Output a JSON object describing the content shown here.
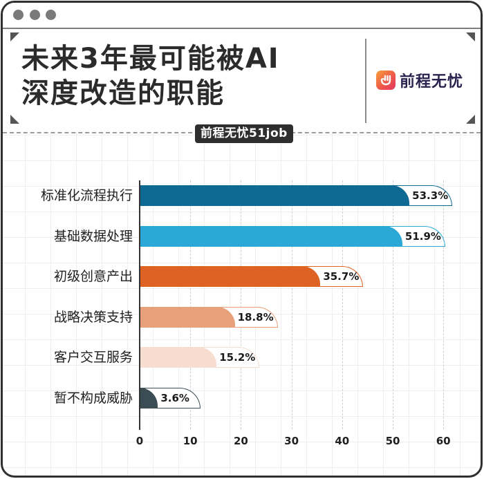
{
  "window": {
    "controls": [
      "dot-1",
      "dot-2",
      "dot-3"
    ]
  },
  "header": {
    "title_line1": "未来3年最可能被AI",
    "title_line2": "深度改造的职能",
    "logo_text": "前程无忧",
    "logo_icon": "hand-icon",
    "source_badge": "前程无忧51job"
  },
  "colors": {
    "bar_1": "#0f6a93",
    "bar_2": "#2ba8d6",
    "bar_3": "#dd6223",
    "bar_4": "#e8a07a",
    "bar_5": "#f7dcd0",
    "bar_6": "#3a4d55",
    "logo_gradient_start": "#f6a13a",
    "logo_gradient_end": "#e3345e",
    "frame": "#2f2f2f"
  },
  "chart_data": {
    "type": "bar",
    "orientation": "horizontal",
    "title": "未来3年最可能被AI深度改造的职能",
    "source": "前程无忧51job",
    "categories": [
      "标准化流程执行",
      "基础数据处理",
      "初级创意产出",
      "战略决策支持",
      "客户交互服务",
      "暂不构成威胁"
    ],
    "values": [
      53.3,
      51.9,
      35.7,
      18.8,
      15.2,
      3.6
    ],
    "value_labels": [
      "53.3%",
      "51.9%",
      "35.7%",
      "18.8%",
      "15.2%",
      "3.6%"
    ],
    "unit": "%",
    "xlabel": "",
    "ylabel": "",
    "xlim": [
      0,
      60
    ],
    "xticks": [
      "0",
      "10",
      "20",
      "30",
      "40",
      "50",
      "60"
    ],
    "grid": true,
    "legend": null
  }
}
